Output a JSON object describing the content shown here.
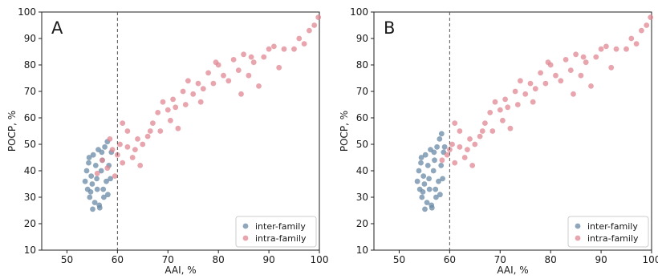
{
  "chart_data": [
    {
      "type": "scatter",
      "panel_label": "A",
      "xlabel": "AAI, %",
      "ylabel": "POCP, %",
      "xlim": [
        45,
        100
      ],
      "ylim": [
        10,
        100
      ],
      "xticks": [
        50,
        60,
        70,
        80,
        90,
        100
      ],
      "yticks": [
        10,
        20,
        30,
        40,
        50,
        60,
        70,
        80,
        90,
        100
      ],
      "reference_line_x": 60,
      "grid": false,
      "legend_position": "bottom-right",
      "series": [
        {
          "name": "inter-family",
          "color": "#6a8aa6",
          "points": [
            [
              53.6,
              36
            ],
            [
              53.9,
              40
            ],
            [
              54.1,
              33
            ],
            [
              54.3,
              43
            ],
            [
              54.5,
              30
            ],
            [
              54.8,
              38
            ],
            [
              55,
              35
            ],
            [
              55.2,
              46
            ],
            [
              55.5,
              28
            ],
            [
              55.7,
              42
            ],
            [
              56,
              33
            ],
            [
              56.2,
              48
            ],
            [
              56.5,
              26
            ],
            [
              56.8,
              40
            ],
            [
              57,
              44
            ],
            [
              57.3,
              30
            ],
            [
              57.5,
              49
            ],
            [
              57.8,
              36
            ],
            [
              58,
              51
            ],
            [
              58.3,
              42
            ],
            [
              58.6,
              37
            ],
            [
              55.1,
              25.5
            ],
            [
              56.4,
              27
            ],
            [
              54.4,
              45
            ],
            [
              57.2,
              33
            ],
            [
              58.8,
              47
            ],
            [
              55.9,
              37
            ],
            [
              56.9,
              47
            ],
            [
              54.7,
              32
            ],
            [
              58.1,
              31
            ]
          ]
        },
        {
          "name": "intra-family",
          "color": "#e08791",
          "points": [
            [
              56,
              39
            ],
            [
              57,
              44
            ],
            [
              58,
              41
            ],
            [
              59,
              48
            ],
            [
              60,
              46
            ],
            [
              61,
              43
            ],
            [
              62,
              49
            ],
            [
              63,
              45
            ],
            [
              64,
              52
            ],
            [
              65,
              50
            ],
            [
              66,
              53
            ],
            [
              67,
              58
            ],
            [
              68,
              62
            ],
            [
              69,
              66
            ],
            [
              70,
              63
            ],
            [
              71,
              67
            ],
            [
              72,
              56
            ],
            [
              73,
              70
            ],
            [
              74,
              74
            ],
            [
              75,
              69
            ],
            [
              76,
              73
            ],
            [
              77,
              71
            ],
            [
              78,
              77
            ],
            [
              79,
              73
            ],
            [
              80,
              80
            ],
            [
              81,
              76
            ],
            [
              82,
              74
            ],
            [
              83,
              82
            ],
            [
              84,
              78
            ],
            [
              85,
              84
            ],
            [
              86,
              76
            ],
            [
              87,
              81
            ],
            [
              88,
              72
            ],
            [
              89,
              83
            ],
            [
              90,
              86
            ],
            [
              91,
              87
            ],
            [
              92,
              79
            ],
            [
              93,
              86
            ],
            [
              95,
              86
            ],
            [
              96,
              90
            ],
            [
              97,
              88
            ],
            [
              98,
              93
            ],
            [
              99,
              95
            ],
            [
              99.8,
              98
            ],
            [
              61,
              58
            ],
            [
              62,
              55
            ],
            [
              63.5,
              48
            ],
            [
              59.5,
              38
            ],
            [
              58.5,
              52
            ],
            [
              60.5,
              50
            ],
            [
              64.5,
              42
            ],
            [
              66.5,
              55
            ],
            [
              68.5,
              55
            ],
            [
              70.5,
              59
            ],
            [
              71.5,
              64
            ],
            [
              73.5,
              65
            ],
            [
              76.5,
              66
            ],
            [
              79.5,
              81
            ],
            [
              84.5,
              69
            ],
            [
              86.5,
              83
            ]
          ]
        }
      ]
    },
    {
      "type": "scatter",
      "panel_label": "B",
      "xlabel": "AAI, %",
      "ylabel": "POCP, %",
      "xlim": [
        45,
        100
      ],
      "ylim": [
        10,
        100
      ],
      "xticks": [
        50,
        60,
        70,
        80,
        90,
        100
      ],
      "yticks": [
        10,
        20,
        30,
        40,
        50,
        60,
        70,
        80,
        90,
        100
      ],
      "reference_line_x": 60,
      "grid": false,
      "legend_position": "bottom-right",
      "series": [
        {
          "name": "inter-family",
          "color": "#6a8aa6",
          "points": [
            [
              53.6,
              36
            ],
            [
              53.9,
              40
            ],
            [
              54.1,
              33
            ],
            [
              54.3,
              43
            ],
            [
              54.5,
              30
            ],
            [
              54.8,
              38
            ],
            [
              55,
              35
            ],
            [
              55.2,
              46
            ],
            [
              55.5,
              28
            ],
            [
              55.7,
              42
            ],
            [
              56,
              33
            ],
            [
              56.2,
              48
            ],
            [
              56.5,
              26
            ],
            [
              56.8,
              40
            ],
            [
              57,
              44
            ],
            [
              57.3,
              30
            ],
            [
              57.5,
              49
            ],
            [
              57.8,
              36
            ],
            [
              58,
              52
            ],
            [
              58.3,
              42
            ],
            [
              58.6,
              37
            ],
            [
              55.1,
              25.5
            ],
            [
              56.4,
              27
            ],
            [
              54.4,
              45
            ],
            [
              57.2,
              33
            ],
            [
              58.8,
              47
            ],
            [
              55.9,
              37
            ],
            [
              56.9,
              47
            ],
            [
              54.7,
              32
            ],
            [
              58.1,
              31
            ],
            [
              58.4,
              54
            ],
            [
              59,
              49
            ]
          ]
        },
        {
          "name": "intra-family",
          "color": "#e08791",
          "points": [
            [
              58.5,
              44
            ],
            [
              59.5,
              46
            ],
            [
              60,
              48
            ],
            [
              61,
              43
            ],
            [
              62,
              49
            ],
            [
              63,
              45
            ],
            [
              64,
              52
            ],
            [
              65,
              50
            ],
            [
              66,
              53
            ],
            [
              67,
              58
            ],
            [
              68,
              62
            ],
            [
              69,
              66
            ],
            [
              70,
              63
            ],
            [
              71,
              67
            ],
            [
              72,
              56
            ],
            [
              73,
              70
            ],
            [
              74,
              74
            ],
            [
              75,
              69
            ],
            [
              76,
              73
            ],
            [
              77,
              71
            ],
            [
              78,
              77
            ],
            [
              79,
              73
            ],
            [
              80,
              80
            ],
            [
              81,
              76
            ],
            [
              82,
              74
            ],
            [
              83,
              82
            ],
            [
              84,
              78
            ],
            [
              85,
              84
            ],
            [
              86,
              76
            ],
            [
              87,
              81
            ],
            [
              88,
              72
            ],
            [
              89,
              83
            ],
            [
              90,
              86
            ],
            [
              91,
              87
            ],
            [
              92,
              79
            ],
            [
              93,
              86
            ],
            [
              95,
              86
            ],
            [
              96,
              90
            ],
            [
              97,
              88
            ],
            [
              98,
              93
            ],
            [
              99,
              95
            ],
            [
              99.8,
              98
            ],
            [
              61,
              58
            ],
            [
              62,
              55
            ],
            [
              63.5,
              48
            ],
            [
              60.5,
              50
            ],
            [
              64.5,
              42
            ],
            [
              66.5,
              55
            ],
            [
              68.5,
              55
            ],
            [
              70.5,
              59
            ],
            [
              71.5,
              64
            ],
            [
              73.5,
              65
            ],
            [
              76.5,
              66
            ],
            [
              79.5,
              81
            ],
            [
              84.5,
              69
            ],
            [
              86.5,
              83
            ]
          ]
        }
      ]
    }
  ]
}
